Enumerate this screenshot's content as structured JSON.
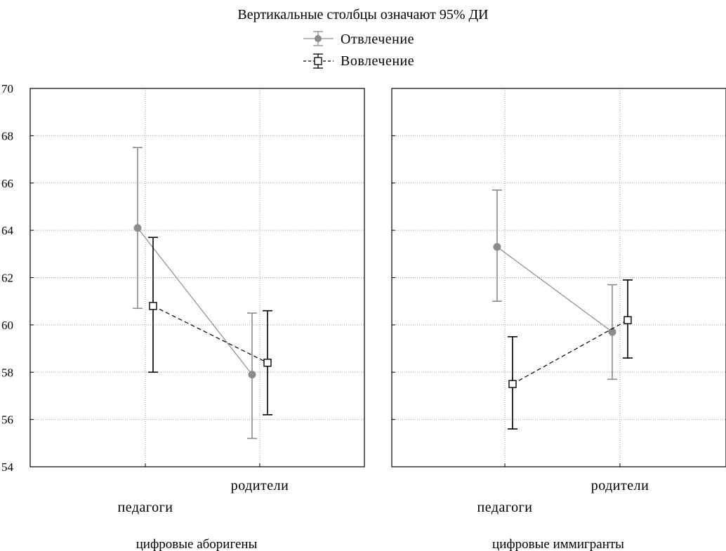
{
  "colors": {
    "series_1": "#8c8c8c",
    "series_2": "#000000",
    "grid": "#9a9a9a"
  },
  "chart_data": {
    "type": "line",
    "title": "Вертикальные столбцы означают 95% ДИ",
    "legend_placement": "top-center",
    "grid": true,
    "ylim": [
      54,
      70
    ],
    "yticks": [
      54,
      56,
      58,
      60,
      62,
      64,
      66,
      68,
      70
    ],
    "categories": [
      "педагоги",
      "родители"
    ],
    "series": [
      {
        "name": "Отвлечение",
        "marker": "filled-circle",
        "line": "solid",
        "color": "#8c8c8c"
      },
      {
        "name": "Вовлечение",
        "marker": "open-square",
        "line": "dashed",
        "color": "#000000"
      }
    ],
    "panels": [
      {
        "group": "цифровые аборигены",
        "values": {
          "Отвлечение": [
            {
              "category": "педагоги",
              "mean": 64.1,
              "ci_low": 60.7,
              "ci_high": 67.5
            },
            {
              "category": "родители",
              "mean": 57.9,
              "ci_low": 55.2,
              "ci_high": 60.5
            }
          ],
          "Вовлечение": [
            {
              "category": "педагоги",
              "mean": 60.8,
              "ci_low": 58.0,
              "ci_high": 63.7
            },
            {
              "category": "родители",
              "mean": 58.4,
              "ci_low": 56.2,
              "ci_high": 60.6
            }
          ]
        }
      },
      {
        "group": "цифровые иммигранты",
        "values": {
          "Отвлечение": [
            {
              "category": "педагоги",
              "mean": 63.3,
              "ci_low": 61.0,
              "ci_high": 65.7
            },
            {
              "category": "родители",
              "mean": 59.7,
              "ci_low": 57.7,
              "ci_high": 61.7
            }
          ],
          "Вовлечение": [
            {
              "category": "педагоги",
              "mean": 57.5,
              "ci_low": 55.6,
              "ci_high": 59.5
            },
            {
              "category": "родители",
              "mean": 60.2,
              "ci_low": 58.6,
              "ci_high": 61.9
            }
          ]
        }
      }
    ]
  }
}
